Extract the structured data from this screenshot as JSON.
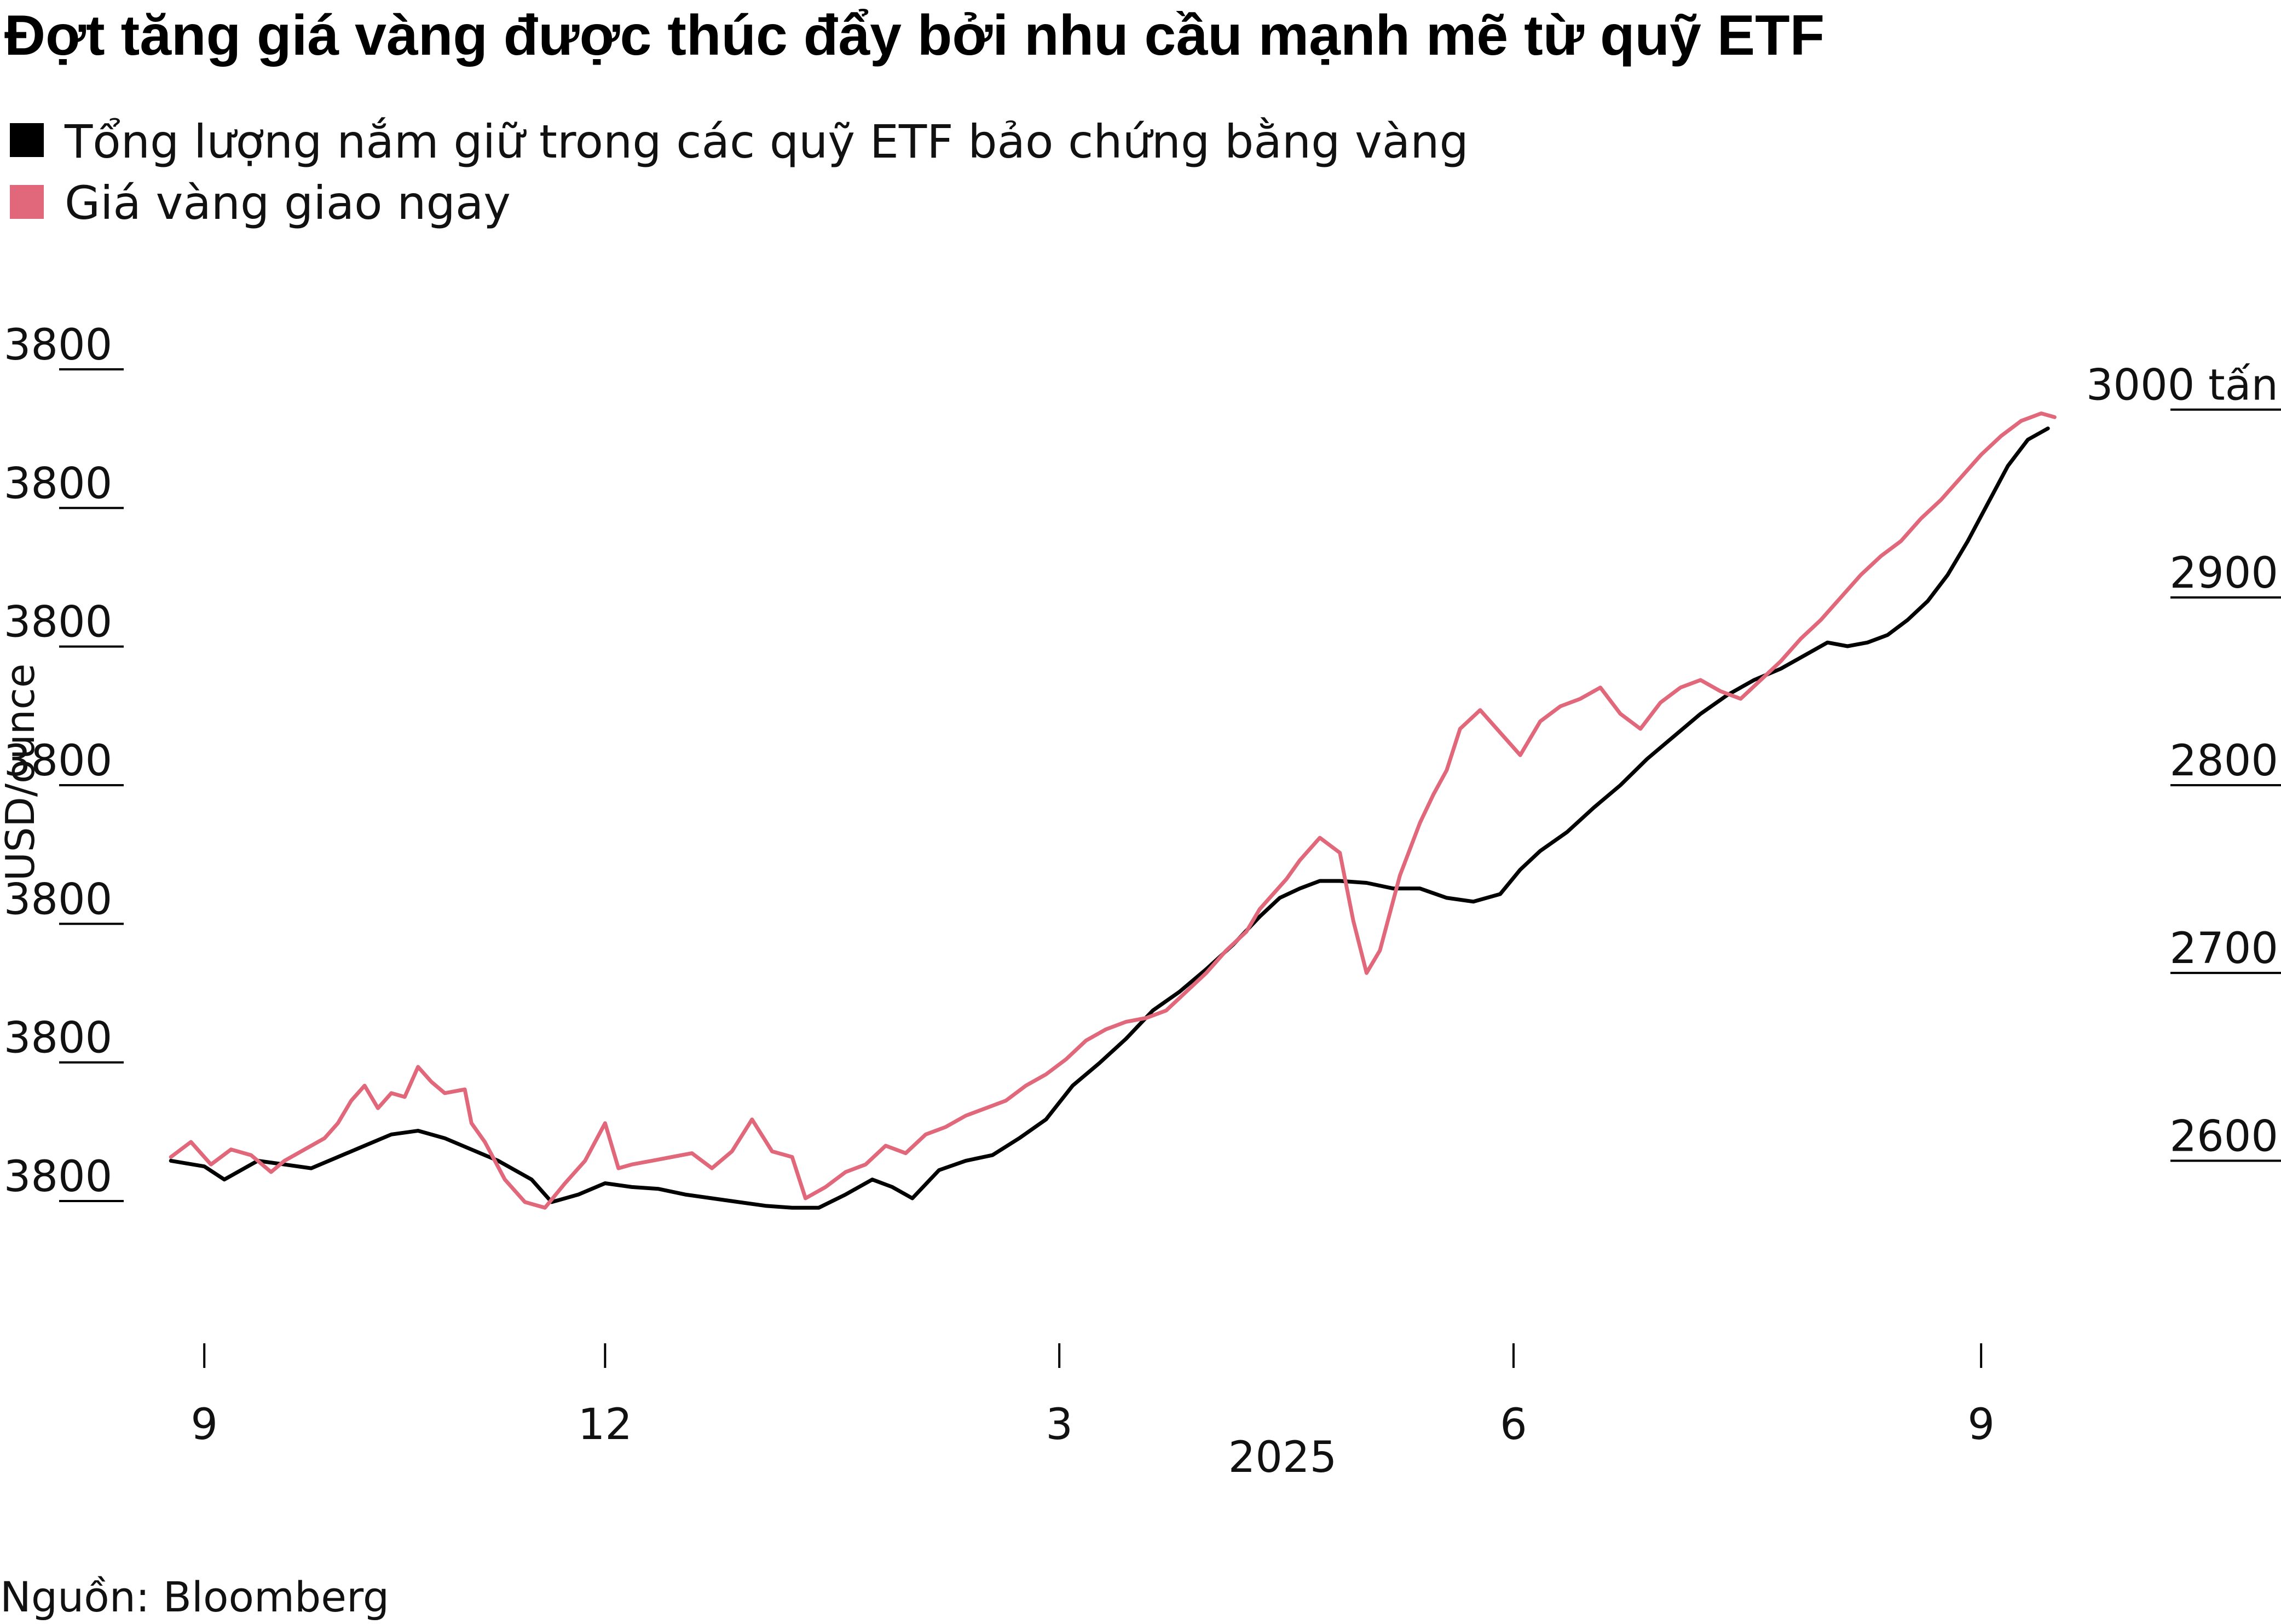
{
  "chart_data": {
    "type": "line",
    "title": "Đợt tăng giá vàng được thúc đẩy bởi nhu cầu mạnh mẽ từ quỹ ETF",
    "source": "Nguồn: Bloomberg",
    "ylabel_left": "USD/ounce",
    "y_left_ticks": [
      "3800",
      "3800",
      "3800",
      "3800",
      "3800",
      "3800",
      "3800"
    ],
    "y_right_ticks": [
      "3000 tấn",
      "2900",
      "2800",
      "2700",
      "2600"
    ],
    "y_right_values": [
      3000,
      2900,
      2800,
      2700,
      2600
    ],
    "y_right_range": [
      2580,
      3020
    ],
    "x_ticks": [
      {
        "label": "9",
        "t": 0.0
      },
      {
        "label": "12",
        "t": 3.0
      },
      {
        "label": "3",
        "t": 6.4
      },
      {
        "label": "6",
        "t": 9.8
      },
      {
        "label": "9",
        "t": 13.3
      }
    ],
    "x_year_label": "2025",
    "x_range": [
      -0.3,
      14.0
    ],
    "series": [
      {
        "name": "Tổng lượng nắm giữ trong các quỹ ETF bảo chứng bằng vàng",
        "color": "#000000",
        "axis": "right",
        "points": [
          [
            -0.25,
            2600
          ],
          [
            0.0,
            2597
          ],
          [
            0.15,
            2590
          ],
          [
            0.4,
            2600
          ],
          [
            0.6,
            2598
          ],
          [
            0.8,
            2596
          ],
          [
            1.0,
            2602
          ],
          [
            1.2,
            2608
          ],
          [
            1.4,
            2614
          ],
          [
            1.6,
            2616
          ],
          [
            1.8,
            2612
          ],
          [
            2.0,
            2606
          ],
          [
            2.2,
            2600
          ],
          [
            2.45,
            2590
          ],
          [
            2.6,
            2578
          ],
          [
            2.8,
            2582
          ],
          [
            3.0,
            2588
          ],
          [
            3.2,
            2586
          ],
          [
            3.4,
            2585
          ],
          [
            3.6,
            2582
          ],
          [
            3.8,
            2580
          ],
          [
            4.0,
            2578
          ],
          [
            4.2,
            2576
          ],
          [
            4.4,
            2575
          ],
          [
            4.6,
            2575
          ],
          [
            4.8,
            2582
          ],
          [
            5.0,
            2590
          ],
          [
            5.15,
            2586
          ],
          [
            5.3,
            2580
          ],
          [
            5.5,
            2595
          ],
          [
            5.7,
            2600
          ],
          [
            5.9,
            2603
          ],
          [
            6.1,
            2612
          ],
          [
            6.3,
            2622
          ],
          [
            6.5,
            2640
          ],
          [
            6.7,
            2652
          ],
          [
            6.9,
            2665
          ],
          [
            7.1,
            2680
          ],
          [
            7.3,
            2690
          ],
          [
            7.5,
            2702
          ],
          [
            7.7,
            2715
          ],
          [
            7.9,
            2730
          ],
          [
            8.05,
            2740
          ],
          [
            8.2,
            2745
          ],
          [
            8.35,
            2749
          ],
          [
            8.5,
            2749
          ],
          [
            8.7,
            2748
          ],
          [
            8.9,
            2745
          ],
          [
            9.1,
            2745
          ],
          [
            9.3,
            2740
          ],
          [
            9.5,
            2738
          ],
          [
            9.7,
            2742
          ],
          [
            9.85,
            2755
          ],
          [
            10.0,
            2765
          ],
          [
            10.2,
            2775
          ],
          [
            10.4,
            2788
          ],
          [
            10.6,
            2800
          ],
          [
            10.8,
            2814
          ],
          [
            11.0,
            2826
          ],
          [
            11.2,
            2838
          ],
          [
            11.4,
            2848
          ],
          [
            11.6,
            2856
          ],
          [
            11.8,
            2862
          ],
          [
            12.0,
            2870
          ],
          [
            12.15,
            2876
          ],
          [
            12.3,
            2874
          ],
          [
            12.45,
            2876
          ],
          [
            12.6,
            2880
          ],
          [
            12.75,
            2888
          ],
          [
            12.9,
            2898
          ],
          [
            13.05,
            2912
          ],
          [
            13.2,
            2930
          ],
          [
            13.35,
            2950
          ],
          [
            13.5,
            2970
          ],
          [
            13.65,
            2984
          ],
          [
            13.8,
            2990
          ]
        ]
      },
      {
        "name": "Giá vàng giao ngay",
        "color": "#e0687a",
        "axis": "right",
        "points": [
          [
            -0.25,
            2602
          ],
          [
            -0.1,
            2610
          ],
          [
            0.05,
            2598
          ],
          [
            0.2,
            2606
          ],
          [
            0.35,
            2603
          ],
          [
            0.5,
            2594
          ],
          [
            0.6,
            2600
          ],
          [
            0.75,
            2606
          ],
          [
            0.9,
            2612
          ],
          [
            1.0,
            2620
          ],
          [
            1.1,
            2632
          ],
          [
            1.2,
            2640
          ],
          [
            1.3,
            2628
          ],
          [
            1.4,
            2636
          ],
          [
            1.5,
            2634
          ],
          [
            1.6,
            2650
          ],
          [
            1.7,
            2642
          ],
          [
            1.8,
            2636
          ],
          [
            1.95,
            2638
          ],
          [
            2.0,
            2620
          ],
          [
            2.1,
            2610
          ],
          [
            2.25,
            2590
          ],
          [
            2.4,
            2578
          ],
          [
            2.55,
            2575
          ],
          [
            2.7,
            2588
          ],
          [
            2.85,
            2600
          ],
          [
            3.0,
            2620
          ],
          [
            3.1,
            2596
          ],
          [
            3.2,
            2598
          ],
          [
            3.35,
            2600
          ],
          [
            3.5,
            2602
          ],
          [
            3.65,
            2604
          ],
          [
            3.8,
            2596
          ],
          [
            3.95,
            2605
          ],
          [
            4.1,
            2622
          ],
          [
            4.25,
            2605
          ],
          [
            4.4,
            2602
          ],
          [
            4.5,
            2580
          ],
          [
            4.65,
            2586
          ],
          [
            4.8,
            2594
          ],
          [
            4.95,
            2598
          ],
          [
            5.1,
            2608
          ],
          [
            5.25,
            2604
          ],
          [
            5.4,
            2614
          ],
          [
            5.55,
            2618
          ],
          [
            5.7,
            2624
          ],
          [
            5.85,
            2628
          ],
          [
            6.0,
            2632
          ],
          [
            6.15,
            2640
          ],
          [
            6.3,
            2646
          ],
          [
            6.45,
            2654
          ],
          [
            6.6,
            2664
          ],
          [
            6.75,
            2670
          ],
          [
            6.9,
            2674
          ],
          [
            7.05,
            2676
          ],
          [
            7.2,
            2680
          ],
          [
            7.35,
            2690
          ],
          [
            7.5,
            2700
          ],
          [
            7.65,
            2712
          ],
          [
            7.8,
            2722
          ],
          [
            7.9,
            2734
          ],
          [
            8.0,
            2742
          ],
          [
            8.1,
            2750
          ],
          [
            8.2,
            2760
          ],
          [
            8.35,
            2772
          ],
          [
            8.5,
            2764
          ],
          [
            8.6,
            2728
          ],
          [
            8.7,
            2700
          ],
          [
            8.8,
            2712
          ],
          [
            8.95,
            2752
          ],
          [
            9.1,
            2780
          ],
          [
            9.2,
            2795
          ],
          [
            9.3,
            2808
          ],
          [
            9.4,
            2830
          ],
          [
            9.55,
            2840
          ],
          [
            9.7,
            2828
          ],
          [
            9.85,
            2816
          ],
          [
            10.0,
            2834
          ],
          [
            10.15,
            2842
          ],
          [
            10.3,
            2846
          ],
          [
            10.45,
            2852
          ],
          [
            10.6,
            2838
          ],
          [
            10.75,
            2830
          ],
          [
            10.9,
            2844
          ],
          [
            11.05,
            2852
          ],
          [
            11.2,
            2856
          ],
          [
            11.35,
            2850
          ],
          [
            11.5,
            2846
          ],
          [
            11.65,
            2856
          ],
          [
            11.8,
            2866
          ],
          [
            11.95,
            2878
          ],
          [
            12.1,
            2888
          ],
          [
            12.25,
            2900
          ],
          [
            12.4,
            2912
          ],
          [
            12.55,
            2922
          ],
          [
            12.7,
            2930
          ],
          [
            12.85,
            2942
          ],
          [
            13.0,
            2952
          ],
          [
            13.15,
            2964
          ],
          [
            13.3,
            2976
          ],
          [
            13.45,
            2986
          ],
          [
            13.6,
            2994
          ],
          [
            13.75,
            2998
          ],
          [
            13.85,
            2996
          ]
        ]
      }
    ],
    "legend_position": "top-left",
    "grid": false
  }
}
